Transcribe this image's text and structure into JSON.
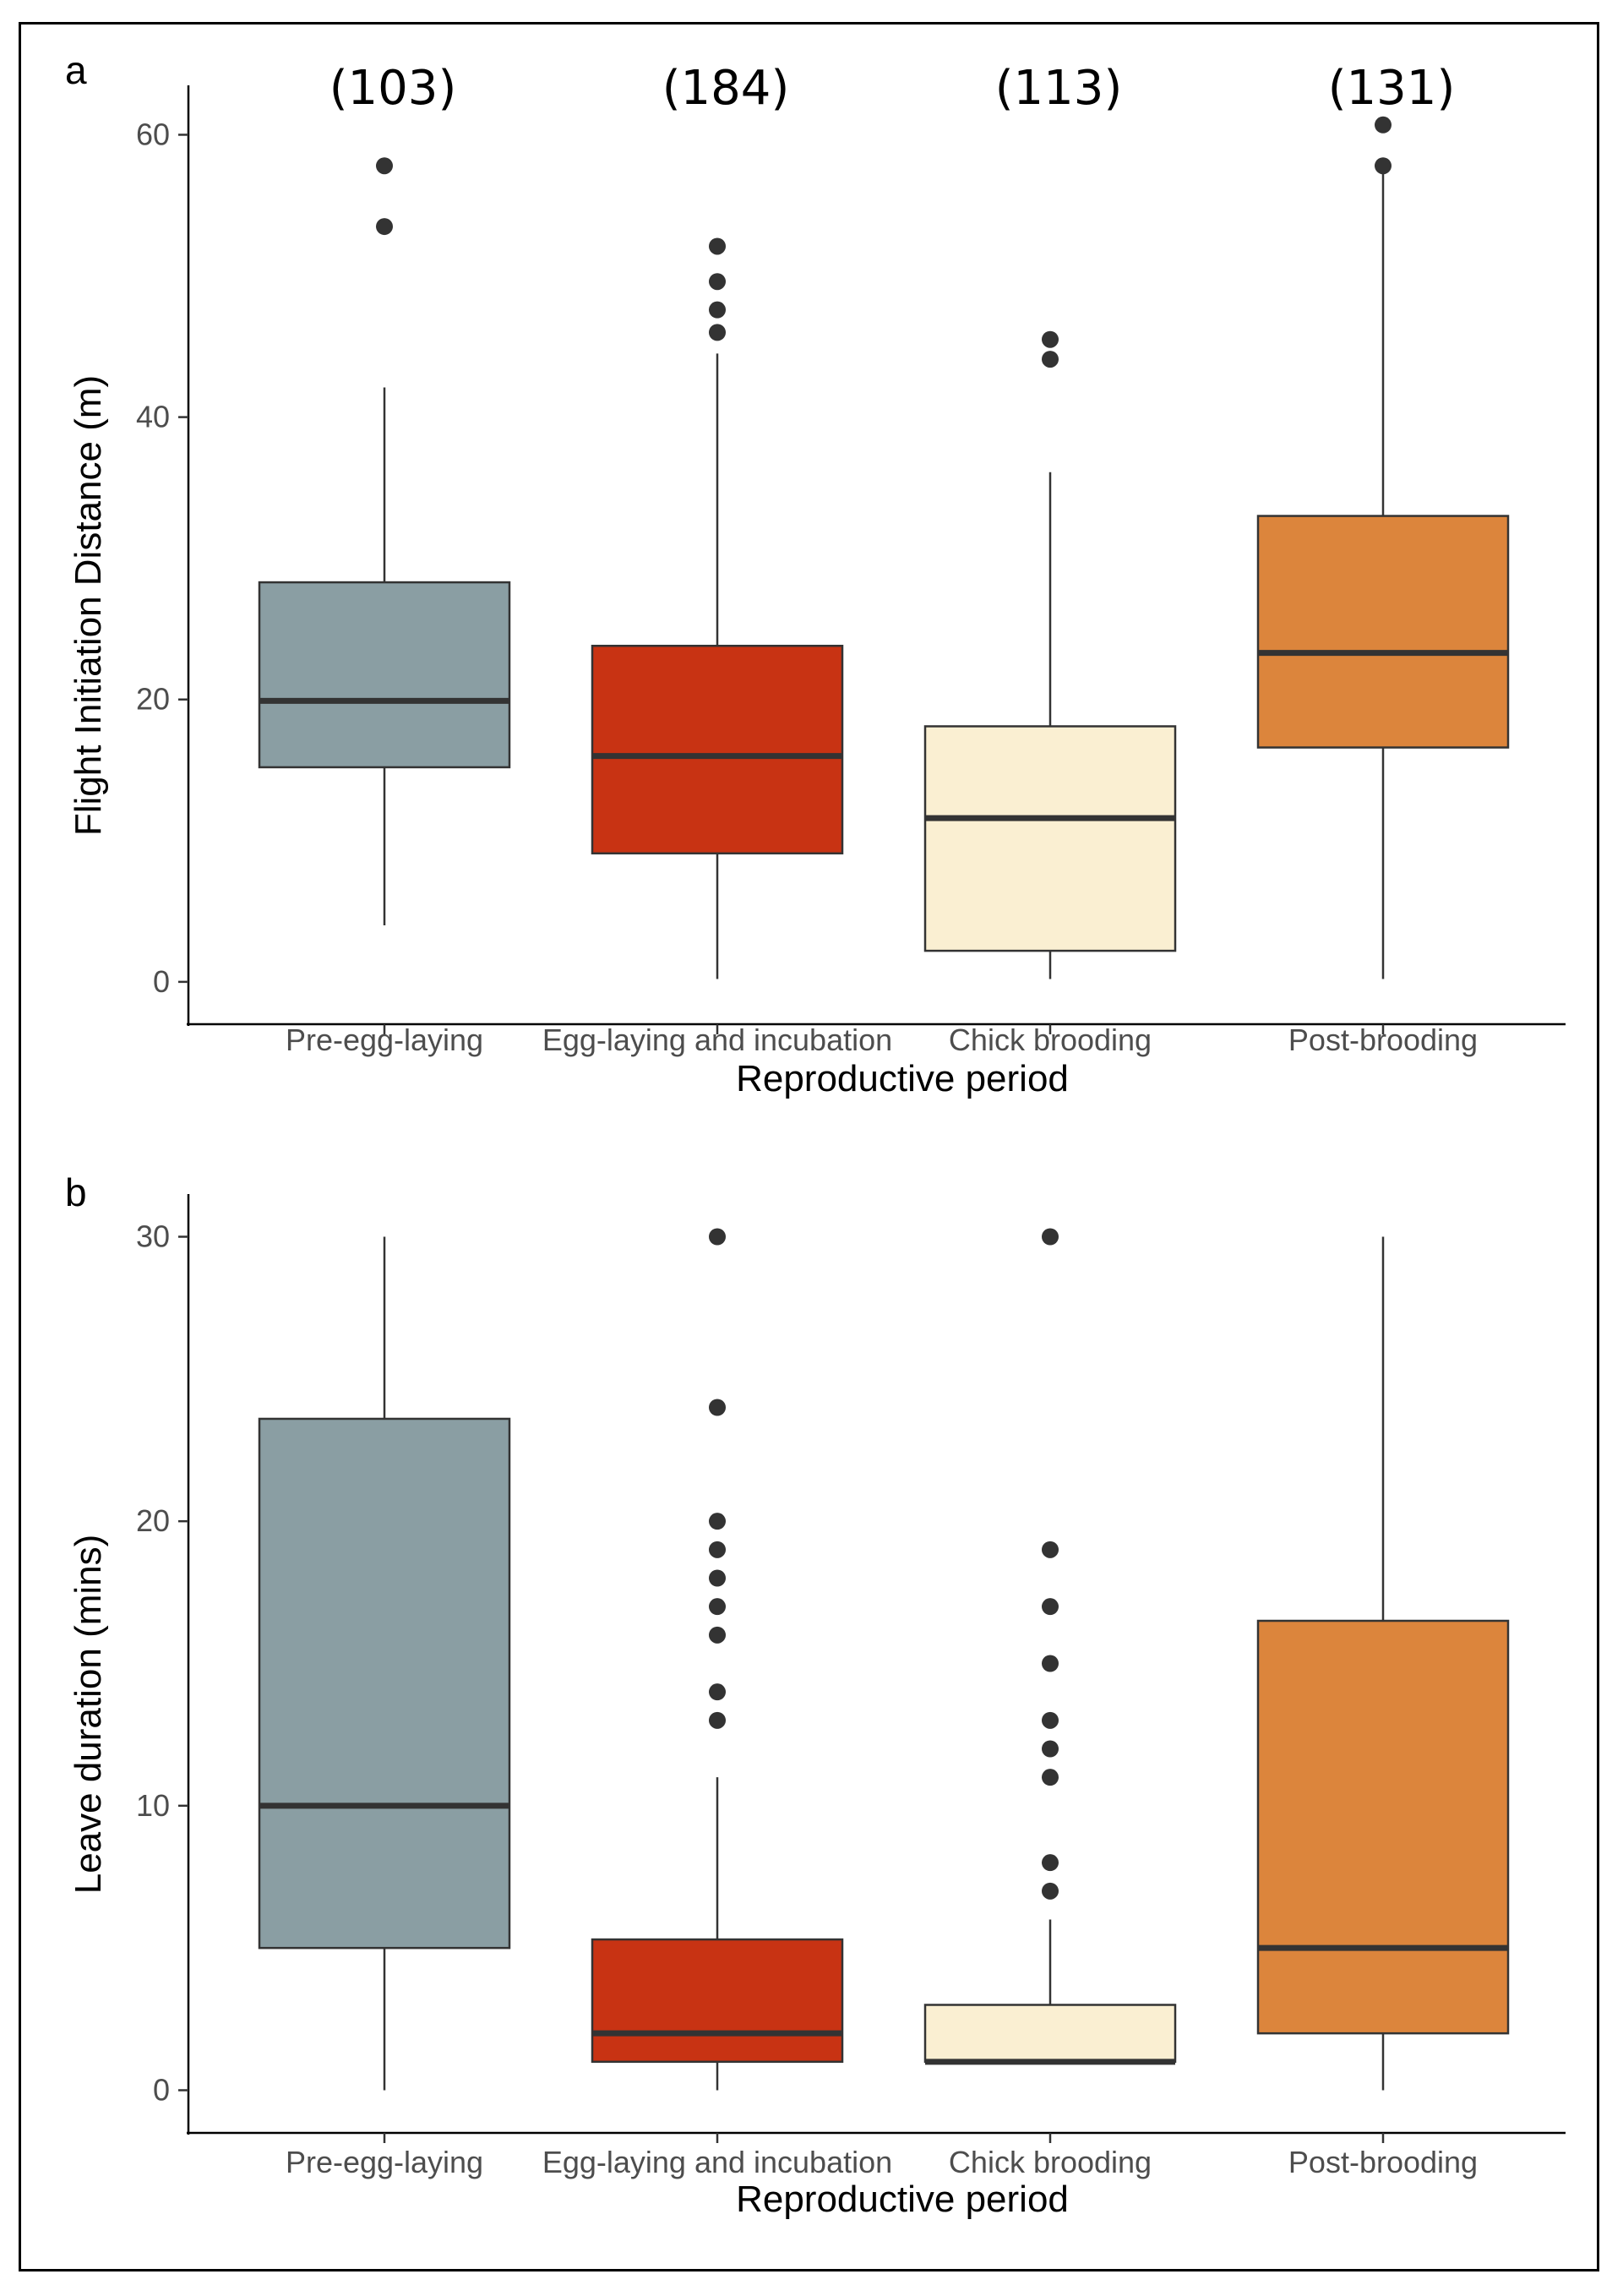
{
  "chart_data": [
    {
      "type": "box",
      "panel_label": "a",
      "xlabel": "Reproductive period",
      "ylabel": "Flight Initiation Distance (m)",
      "ylim": [
        -3,
        63.5
      ],
      "yticks": [
        0,
        20,
        40,
        60
      ],
      "categories": [
        "Pre-egg-laying",
        "Egg-laying and incubation",
        "Chick brooding",
        "Post-brooding"
      ],
      "sample_sizes": [
        "(103)",
        "(184)",
        "(113)",
        "(131)"
      ],
      "colors": [
        "#8a9ea3",
        "#c83313",
        "#faefd2",
        "#dc853c"
      ],
      "boxes": [
        {
          "whisker_low": 4,
          "q1": 15.2,
          "median": 19.9,
          "q3": 28.3,
          "whisker_high": 42.1,
          "outliers": [
            53.5,
            57.8
          ]
        },
        {
          "whisker_low": 0.2,
          "q1": 9.1,
          "median": 16,
          "q3": 23.8,
          "whisker_high": 44.5,
          "outliers": [
            46,
            47.6,
            49.6,
            52.1
          ]
        },
        {
          "whisker_low": 0.2,
          "q1": 2.2,
          "median": 11.6,
          "q3": 18.1,
          "whisker_high": 36.1,
          "outliers": [
            44.1,
            45.5
          ]
        },
        {
          "whisker_low": 0.2,
          "q1": 16.6,
          "median": 23.3,
          "q3": 33,
          "whisker_high": 57.8,
          "outliers": [
            57.8,
            60.7
          ]
        }
      ]
    },
    {
      "type": "box",
      "panel_label": "b",
      "xlabel": "Reproductive period",
      "ylabel": "Leave duration (mins)",
      "ylim": [
        -1.5,
        31.5
      ],
      "yticks": [
        0,
        10,
        20,
        30
      ],
      "categories": [
        "Pre-egg-laying",
        "Egg-laying and incubation",
        "Chick brooding",
        "Post-brooding"
      ],
      "colors": [
        "#8a9ea3",
        "#c83313",
        "#faefd2",
        "#dc853c"
      ],
      "boxes": [
        {
          "whisker_low": 0,
          "q1": 5,
          "median": 10,
          "q3": 23.6,
          "whisker_high": 30,
          "outliers": []
        },
        {
          "whisker_low": 0,
          "q1": 1,
          "median": 2,
          "q3": 5.3,
          "whisker_high": 11,
          "outliers": [
            13,
            14,
            16,
            17,
            18,
            19,
            20,
            24,
            30
          ]
        },
        {
          "whisker_low": 1,
          "q1": 1,
          "median": 1,
          "q3": 3,
          "whisker_high": 6,
          "outliers": [
            7,
            8,
            11,
            12,
            13,
            15,
            17,
            19,
            30
          ]
        },
        {
          "whisker_low": 0,
          "q1": 2,
          "median": 5,
          "q3": 16.5,
          "whisker_high": 30,
          "outliers": []
        }
      ]
    }
  ]
}
